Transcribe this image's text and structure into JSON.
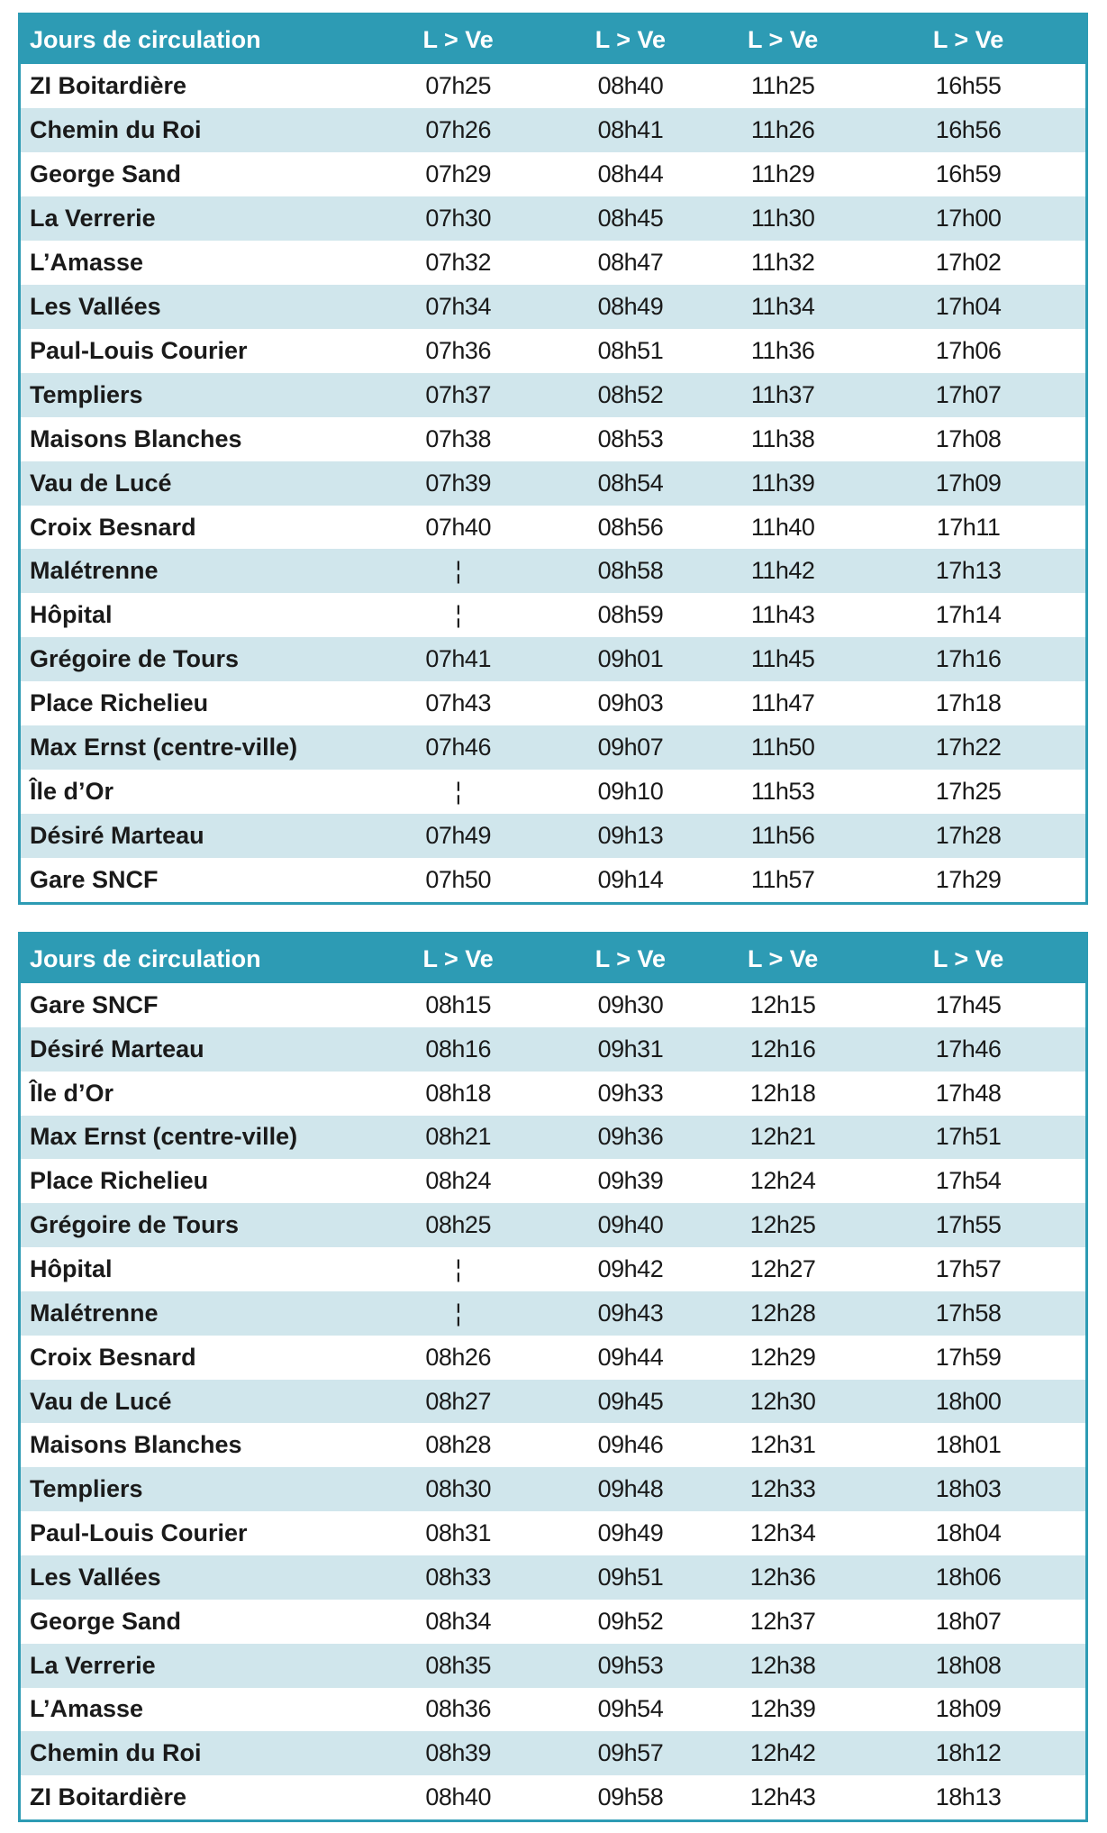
{
  "colors": {
    "header_bg": "#2d9bb4",
    "row_alt_bg": "#d0e6ec",
    "row_bg": "#ffffff",
    "border": "#2d9bb4"
  },
  "skip_icon": "dashed-vertical-bar",
  "tables": [
    {
      "header": {
        "label": "Jours de circulation",
        "days": [
          "L > Ve",
          "L > Ve",
          "L > Ve",
          "L > Ve"
        ]
      },
      "rows": [
        {
          "stop": "ZI Boitardière",
          "times": [
            "07h25",
            "08h40",
            "11h25",
            "16h55"
          ]
        },
        {
          "stop": "Chemin du Roi",
          "times": [
            "07h26",
            "08h41",
            "11h26",
            "16h56"
          ]
        },
        {
          "stop": "George Sand",
          "times": [
            "07h29",
            "08h44",
            "11h29",
            "16h59"
          ]
        },
        {
          "stop": "La Verrerie",
          "times": [
            "07h30",
            "08h45",
            "11h30",
            "17h00"
          ]
        },
        {
          "stop": "L’Amasse",
          "times": [
            "07h32",
            "08h47",
            "11h32",
            "17h02"
          ]
        },
        {
          "stop": "Les Vallées",
          "times": [
            "07h34",
            "08h49",
            "11h34",
            "17h04"
          ]
        },
        {
          "stop": "Paul-Louis Courier",
          "times": [
            "07h36",
            "08h51",
            "11h36",
            "17h06"
          ]
        },
        {
          "stop": "Templiers",
          "times": [
            "07h37",
            "08h52",
            "11h37",
            "17h07"
          ]
        },
        {
          "stop": "Maisons Blanches",
          "times": [
            "07h38",
            "08h53",
            "11h38",
            "17h08"
          ]
        },
        {
          "stop": "Vau de Lucé",
          "times": [
            "07h39",
            "08h54",
            "11h39",
            "17h09"
          ]
        },
        {
          "stop": "Croix Besnard",
          "times": [
            "07h40",
            "08h56",
            "11h40",
            "17h11"
          ]
        },
        {
          "stop": "Malétrenne",
          "times": [
            "¦",
            "08h58",
            "11h42",
            "17h13"
          ]
        },
        {
          "stop": "Hôpital",
          "times": [
            "¦",
            "08h59",
            "11h43",
            "17h14"
          ]
        },
        {
          "stop": "Grégoire de Tours",
          "times": [
            "07h41",
            "09h01",
            "11h45",
            "17h16"
          ]
        },
        {
          "stop": "Place Richelieu",
          "times": [
            "07h43",
            "09h03",
            "11h47",
            "17h18"
          ]
        },
        {
          "stop": "Max Ernst (centre-ville)",
          "times": [
            "07h46",
            "09h07",
            "11h50",
            "17h22"
          ]
        },
        {
          "stop": "Île d’Or",
          "times": [
            "¦",
            "09h10",
            "11h53",
            "17h25"
          ]
        },
        {
          "stop": "Désiré Marteau",
          "times": [
            "07h49",
            "09h13",
            "11h56",
            "17h28"
          ]
        },
        {
          "stop": "Gare SNCF",
          "times": [
            "07h50",
            "09h14",
            "11h57",
            "17h29"
          ]
        }
      ]
    },
    {
      "header": {
        "label": "Jours de circulation",
        "days": [
          "L > Ve",
          "L > Ve",
          "L > Ve",
          "L > Ve"
        ]
      },
      "rows": [
        {
          "stop": "Gare SNCF",
          "times": [
            "08h15",
            "09h30",
            "12h15",
            "17h45"
          ]
        },
        {
          "stop": "Désiré Marteau",
          "times": [
            "08h16",
            "09h31",
            "12h16",
            "17h46"
          ]
        },
        {
          "stop": "Île d’Or",
          "times": [
            "08h18",
            "09h33",
            "12h18",
            "17h48"
          ]
        },
        {
          "stop": "Max Ernst (centre-ville)",
          "times": [
            "08h21",
            "09h36",
            "12h21",
            "17h51"
          ]
        },
        {
          "stop": "Place Richelieu",
          "times": [
            "08h24",
            "09h39",
            "12h24",
            "17h54"
          ]
        },
        {
          "stop": "Grégoire de Tours",
          "times": [
            "08h25",
            "09h40",
            "12h25",
            "17h55"
          ]
        },
        {
          "stop": "Hôpital",
          "times": [
            "¦",
            "09h42",
            "12h27",
            "17h57"
          ]
        },
        {
          "stop": "Malétrenne",
          "times": [
            "¦",
            "09h43",
            "12h28",
            "17h58"
          ]
        },
        {
          "stop": "Croix Besnard",
          "times": [
            "08h26",
            "09h44",
            "12h29",
            "17h59"
          ]
        },
        {
          "stop": "Vau de Lucé",
          "times": [
            "08h27",
            "09h45",
            "12h30",
            "18h00"
          ]
        },
        {
          "stop": "Maisons Blanches",
          "times": [
            "08h28",
            "09h46",
            "12h31",
            "18h01"
          ]
        },
        {
          "stop": "Templiers",
          "times": [
            "08h30",
            "09h48",
            "12h33",
            "18h03"
          ]
        },
        {
          "stop": "Paul-Louis Courier",
          "times": [
            "08h31",
            "09h49",
            "12h34",
            "18h04"
          ]
        },
        {
          "stop": "Les Vallées",
          "times": [
            "08h33",
            "09h51",
            "12h36",
            "18h06"
          ]
        },
        {
          "stop": "George Sand",
          "times": [
            "08h34",
            "09h52",
            "12h37",
            "18h07"
          ]
        },
        {
          "stop": "La Verrerie",
          "times": [
            "08h35",
            "09h53",
            "12h38",
            "18h08"
          ]
        },
        {
          "stop": "L’Amasse",
          "times": [
            "08h36",
            "09h54",
            "12h39",
            "18h09"
          ]
        },
        {
          "stop": "Chemin du Roi",
          "times": [
            "08h39",
            "09h57",
            "12h42",
            "18h12"
          ]
        },
        {
          "stop": "ZI Boitardière",
          "times": [
            "08h40",
            "09h58",
            "12h43",
            "18h13"
          ]
        }
      ]
    }
  ]
}
